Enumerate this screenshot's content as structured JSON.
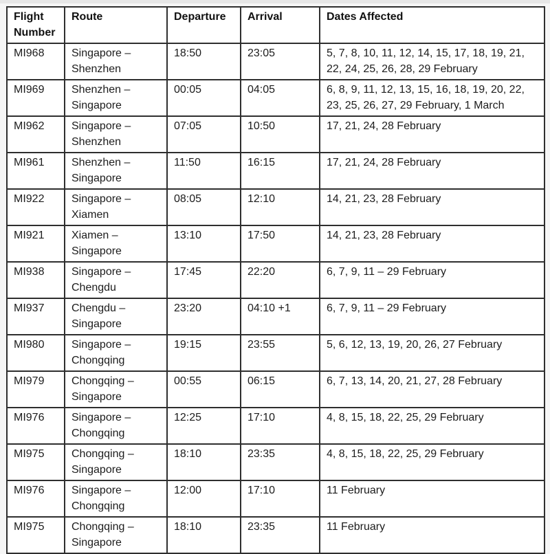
{
  "table": {
    "headers": [
      "Flight Number",
      "Route",
      "Departure",
      "Arrival",
      "Dates Affected"
    ],
    "rows": [
      {
        "flight_number": "MI968",
        "route": "Singapore –\nShenzhen",
        "departure": "18:50",
        "arrival": "23:05",
        "dates_affected": "5, 7, 8, 10, 11, 12, 14, 15, 17, 18, 19, 21, 22, 24, 25, 26, 28, 29 February"
      },
      {
        "flight_number": "MI969",
        "route": "Shenzhen –\nSingapore",
        "departure": "00:05",
        "arrival": "04:05",
        "dates_affected": "6, 8, 9, 11, 12, 13, 15, 16, 18, 19, 20, 22, 23, 25, 26, 27, 29 February, 1 March"
      },
      {
        "flight_number": "MI962",
        "route": "Singapore –\nShenzhen",
        "departure": "07:05",
        "arrival": "10:50",
        "dates_affected": "17, 21, 24, 28 February"
      },
      {
        "flight_number": "MI961",
        "route": "Shenzhen –\nSingapore",
        "departure": "11:50",
        "arrival": "16:15",
        "dates_affected": "17, 21, 24, 28 February"
      },
      {
        "flight_number": "MI922",
        "route": "Singapore –\nXiamen",
        "departure": "08:05",
        "arrival": "12:10",
        "dates_affected": "14, 21, 23, 28 February"
      },
      {
        "flight_number": "MI921",
        "route": "Xiamen –\nSingapore",
        "departure": "13:10",
        "arrival": "17:50",
        "dates_affected": "14, 21, 23, 28 February"
      },
      {
        "flight_number": "MI938",
        "route": "Singapore –\nChengdu",
        "departure": "17:45",
        "arrival": "22:20",
        "dates_affected": "6, 7, 9, 11 – 29 February"
      },
      {
        "flight_number": "MI937",
        "route": "Chengdu –\nSingapore",
        "departure": "23:20",
        "arrival": "04:10 +1",
        "dates_affected": "6, 7, 9, 11 – 29 February"
      },
      {
        "flight_number": "MI980",
        "route": "Singapore –\nChongqing",
        "departure": "19:15",
        "arrival": "23:55",
        "dates_affected": "5, 6, 12, 13, 19, 20, 26, 27 February"
      },
      {
        "flight_number": "MI979",
        "route": "Chongqing –\nSingapore",
        "departure": "00:55",
        "arrival": "06:15",
        "dates_affected": "6, 7, 13, 14, 20, 21, 27, 28 February"
      },
      {
        "flight_number": "MI976",
        "route": "Singapore –\nChongqing",
        "departure": "12:25",
        "arrival": "17:10",
        "dates_affected": "4, 8, 15, 18, 22, 25, 29 February"
      },
      {
        "flight_number": "MI975",
        "route": "Chongqing –\nSingapore",
        "departure": "18:10",
        "arrival": "23:35",
        "dates_affected": "4, 8, 15, 18, 22, 25, 29 February"
      },
      {
        "flight_number": "MI976",
        "route": "Singapore –\nChongqing",
        "departure": "12:00",
        "arrival": "17:10",
        "dates_affected": "11 February"
      },
      {
        "flight_number": "MI975",
        "route": "Chongqing –\nSingapore",
        "departure": "18:10",
        "arrival": "23:35",
        "dates_affected": "11 February"
      }
    ]
  }
}
